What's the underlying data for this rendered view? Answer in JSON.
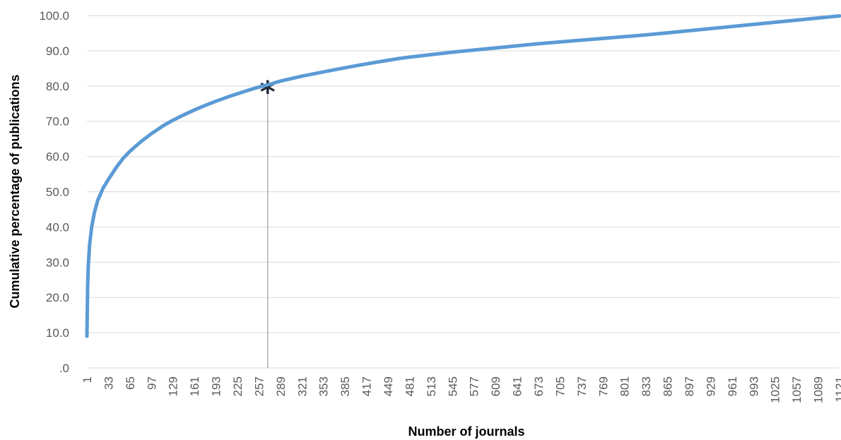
{
  "chart_data": {
    "type": "line",
    "xlabel": "Number of journals",
    "ylabel": "Cumulative percentage of publications",
    "xlim": [
      1,
      1121
    ],
    "ylim": [
      0,
      100
    ],
    "grid": true,
    "y_ticks": [
      ".0",
      "10.0",
      "20.0",
      "30.0",
      "40.0",
      "50.0",
      "60.0",
      "70.0",
      "80.0",
      "90.0",
      "100.0"
    ],
    "x_ticks": [
      1,
      33,
      65,
      97,
      129,
      161,
      193,
      225,
      257,
      289,
      321,
      353,
      385,
      417,
      449,
      481,
      513,
      545,
      577,
      609,
      641,
      673,
      705,
      737,
      769,
      801,
      833,
      865,
      897,
      929,
      961,
      993,
      1025,
      1057,
      1089,
      1121
    ],
    "series": [
      {
        "color": "#5b9bd5",
        "x": [
          1,
          2,
          3,
          5,
          8,
          12,
          17,
          25,
          33,
          45,
          55,
          65,
          80,
          97,
          115,
          129,
          145,
          161,
          177,
          193,
          209,
          225,
          241,
          257,
          273,
          289,
          321,
          353,
          385,
          417,
          449,
          465,
          481,
          513,
          545,
          577,
          609,
          641,
          673,
          705,
          737,
          769,
          801,
          833,
          865,
          897,
          929,
          961,
          993,
          1025,
          1057,
          1089,
          1121
        ],
        "y": [
          9.0,
          23.0,
          29.0,
          35.0,
          40.0,
          44.0,
          47.5,
          51.0,
          53.5,
          57.0,
          59.5,
          61.5,
          64.0,
          66.5,
          68.8,
          70.3,
          71.8,
          73.2,
          74.5,
          75.7,
          76.8,
          77.8,
          78.8,
          79.7,
          80.5,
          81.4,
          82.8,
          84.0,
          85.2,
          86.3,
          87.3,
          87.8,
          88.2,
          88.9,
          89.6,
          90.2,
          90.8,
          91.4,
          92.0,
          92.5,
          93.0,
          93.5,
          94.0,
          94.5,
          95.1,
          95.7,
          96.3,
          96.9,
          97.5,
          98.1,
          98.7,
          99.3,
          99.9
        ]
      }
    ],
    "annotation": {
      "marker": "*",
      "x": 270,
      "y": 80.3,
      "vertical_line": true
    }
  }
}
